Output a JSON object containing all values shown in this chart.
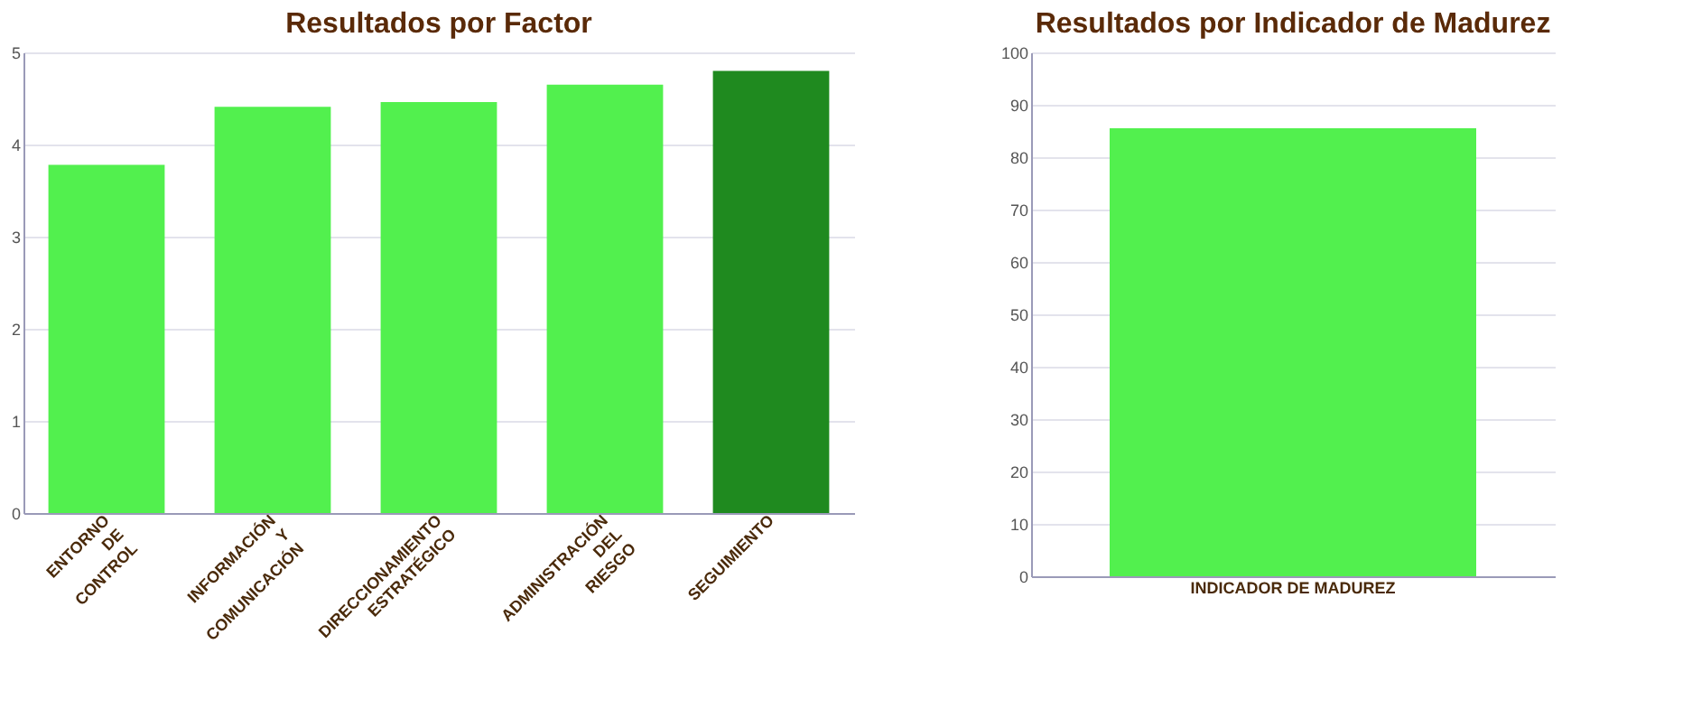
{
  "chart_data": [
    {
      "type": "bar",
      "title": "Resultados por Factor",
      "categories": [
        "ENTORNO DE CONTROL",
        "INFORMACIÓN Y COMUNICACIÓN",
        "DIRECCIONAMIENTO ESTRATÉGICO",
        "ADMINISTRACIÓN DEL RIESGO",
        "SEGUIMIENTO"
      ],
      "values": [
        3.78,
        4.41,
        4.46,
        4.65,
        4.8
      ],
      "colors": [
        "#52f04e",
        "#52f04e",
        "#52f04e",
        "#52f04e",
        "#1f8a1f"
      ],
      "ylim": [
        0,
        5
      ],
      "yticks": [
        0,
        1,
        2,
        3,
        4,
        5
      ],
      "grid": "y"
    },
    {
      "type": "bar",
      "title": "Resultados por Indicador de Madurez",
      "categories": [
        "INDICADOR DE MADUREZ"
      ],
      "values": [
        85.5
      ],
      "colors": [
        "#52f04e"
      ],
      "ylim": [
        0,
        100
      ],
      "yticks": [
        0,
        10,
        20,
        30,
        40,
        50,
        60,
        70,
        80,
        90,
        100
      ],
      "grid": "y"
    }
  ]
}
